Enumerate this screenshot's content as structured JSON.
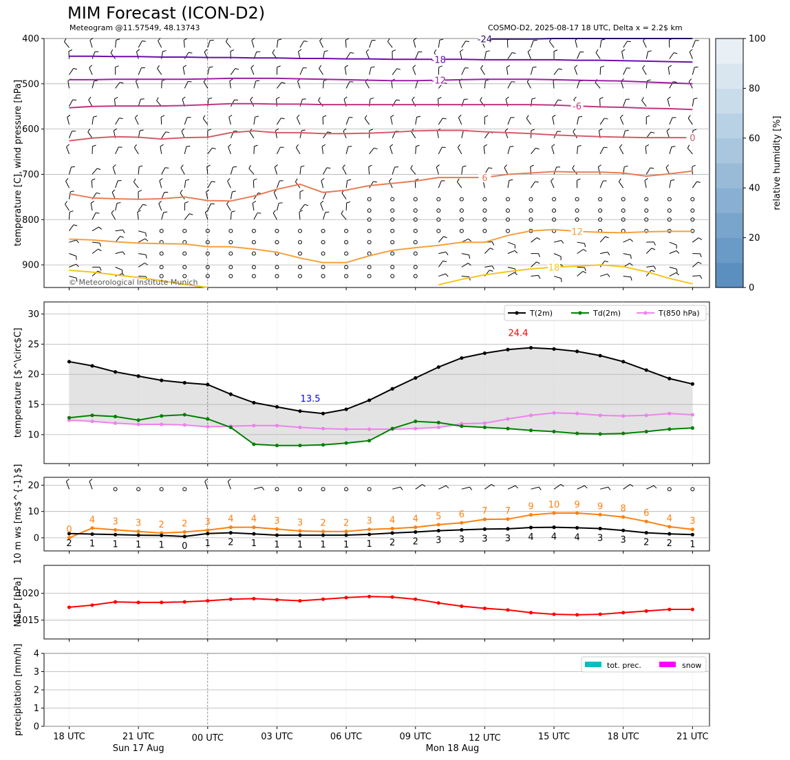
{
  "title": "MIM Forecast (ICON-D2)",
  "subtitle_left": "Meteogram @11.57549, 48.13743",
  "subtitle_right": "COSMO-D2, 2025-08-17 18 UTC, Delta x = 2.2$ km",
  "copyright": "© Meteorological Institute Munich",
  "colors": {
    "t2m": "#000000",
    "td2m": "#008000",
    "t850": "#ee82ee",
    "gust": "#ff7f0e",
    "mslp": "#ff0000",
    "precip": "#00bfbf",
    "snow": "#ff00ff",
    "min_label": "#0000ff",
    "max_label": "#ff0000",
    "fill": "#e3e3e3"
  },
  "chart_data": [
    {
      "type": "line",
      "panel": "upper-air",
      "ylabel": "temperature [C], wind pressure [hPa]",
      "y_ticks": [
        400,
        500,
        600,
        700,
        800,
        900
      ],
      "ylim": [
        950,
        400
      ],
      "x_tick_labels": [
        "18 UTC",
        "21 UTC",
        "00 UTC",
        "03 UTC",
        "06 UTC",
        "09 UTC",
        "12 UTC",
        "15 UTC",
        "18 UTC",
        "21 UTC"
      ],
      "x_date_labels": [
        "Sun 17 Aug",
        "Mon 18 Aug"
      ],
      "colorbar": {
        "label": "relative humidity [%]",
        "ticks": [
          0,
          20,
          40,
          60,
          80,
          100
        ]
      },
      "isotherms": [
        {
          "label": "-18",
          "values": [
            439,
            439,
            440,
            440,
            441,
            441,
            442,
            442,
            443,
            443,
            444,
            444,
            445,
            445,
            446,
            446,
            446,
            446,
            447,
            447,
            447,
            447,
            448,
            448,
            449,
            450,
            451,
            452
          ]
        },
        {
          "label": "-12",
          "values": [
            491,
            491,
            490,
            490,
            490,
            490,
            489,
            488,
            488,
            488,
            489,
            490,
            491,
            492,
            493,
            493,
            492,
            491,
            490,
            490,
            490,
            491,
            492,
            493,
            494,
            496,
            498,
            500
          ]
        },
        {
          "label": "-6",
          "values": [
            553,
            550,
            549,
            549,
            549,
            548,
            546,
            544,
            544,
            545,
            545,
            546,
            546,
            546,
            546,
            546,
            546,
            546,
            546,
            546,
            546,
            547,
            549,
            551,
            552,
            554,
            555,
            557
          ]
        },
        {
          "label": "0",
          "values": [
            626,
            620,
            617,
            618,
            622,
            619,
            618,
            608,
            604,
            608,
            608,
            610,
            610,
            609,
            607,
            604,
            603,
            603,
            606,
            608,
            610,
            613,
            615,
            617,
            618,
            619,
            619,
            619
          ]
        },
        {
          "label": "6",
          "values": [
            743,
            752,
            754,
            755,
            754,
            750,
            758,
            759,
            748,
            733,
            722,
            740,
            735,
            725,
            720,
            715,
            707,
            707,
            707,
            700,
            697,
            694,
            695,
            695,
            697,
            704,
            699,
            693
          ]
        },
        {
          "label": "12",
          "values": [
            843,
            845,
            849,
            852,
            853,
            854,
            860,
            860,
            865,
            872,
            885,
            895,
            895,
            880,
            868,
            862,
            857,
            850,
            850,
            835,
            825,
            822,
            826,
            828,
            829,
            827,
            826,
            826
          ]
        },
        {
          "label": "18",
          "values": [
            912,
            916,
            922,
            928,
            935,
            943,
            950,
            null,
            null,
            null,
            null,
            null,
            null,
            null,
            null,
            964,
            944,
            932,
            922,
            915,
            909,
            905,
            903,
            900,
            904,
            915,
            930,
            942
          ]
        },
        {
          "label": "-24",
          "values": [
            null,
            null,
            null,
            null,
            null,
            null,
            null,
            null,
            null,
            null,
            null,
            null,
            null,
            null,
            null,
            null,
            null,
            null,
            401,
            401,
            401,
            400,
            400,
            400,
            400,
            400,
            400,
            400
          ]
        }
      ]
    },
    {
      "type": "line",
      "panel": "temperature",
      "ylabel": "temperature [$^\\circ$C]",
      "y_ticks": [
        10,
        15,
        20,
        25,
        30
      ],
      "ylim": [
        5.2,
        32
      ],
      "legend": [
        "T(2m)",
        "Td(2m)",
        "T(850 hPa)"
      ],
      "annotations": [
        {
          "text": "13.5",
          "x": 11,
          "y": 13.5,
          "kind": "min"
        },
        {
          "text": "24.4",
          "x": 20,
          "y": 24.4,
          "kind": "max"
        }
      ],
      "series": [
        {
          "name": "T(2m)",
          "values": [
            22.1,
            21.4,
            20.4,
            19.7,
            19.0,
            18.6,
            18.3,
            16.7,
            15.3,
            14.6,
            13.9,
            13.5,
            14.2,
            15.7,
            17.6,
            19.4,
            21.2,
            22.7,
            23.5,
            24.1,
            24.4,
            24.2,
            23.8,
            23.1,
            22.1,
            20.7,
            19.3,
            18.4
          ]
        },
        {
          "name": "Td(2m)",
          "values": [
            12.8,
            13.2,
            13.0,
            12.4,
            13.1,
            13.3,
            12.6,
            11.2,
            8.4,
            8.2,
            8.2,
            8.3,
            8.6,
            9.0,
            11.0,
            12.2,
            12.0,
            11.4,
            11.2,
            11.0,
            10.7,
            10.5,
            10.2,
            10.1,
            10.2,
            10.5,
            10.9,
            11.1
          ]
        },
        {
          "name": "T(850 hPa)",
          "values": [
            12.4,
            12.2,
            11.9,
            11.7,
            11.7,
            11.6,
            11.3,
            11.4,
            11.5,
            11.5,
            11.2,
            11.0,
            10.9,
            10.9,
            10.9,
            11.0,
            11.2,
            11.8,
            11.9,
            12.6,
            13.2,
            13.6,
            13.5,
            13.2,
            13.1,
            13.2,
            13.5,
            13.3
          ]
        }
      ]
    },
    {
      "type": "line",
      "panel": "wind",
      "ylabel": "10 m ws [ms$^{-1}$]",
      "y_ticks": [
        0,
        10,
        20
      ],
      "ylim": [
        -5,
        23
      ],
      "series": [
        {
          "name": "gust",
          "values": [
            0,
            4,
            3,
            3,
            2,
            2,
            3,
            4,
            4,
            3,
            3,
            2,
            2,
            3,
            4,
            4,
            5,
            6,
            7,
            7,
            9,
            10,
            9,
            9,
            8,
            6,
            4,
            3
          ],
          "plot_values": [
            0,
            3.7,
            3.0,
            2.4,
            1.8,
            2.2,
            2.9,
            4.0,
            4.0,
            3.3,
            2.6,
            2.4,
            2.4,
            3.2,
            3.5,
            4.0,
            5.0,
            5.7,
            7.0,
            7.1,
            8.7,
            9.4,
            9.4,
            8.8,
            7.9,
            6.2,
            4.2,
            3.2
          ]
        },
        {
          "name": "mean",
          "values": [
            2,
            1,
            1,
            1,
            1,
            0,
            1,
            2,
            1,
            1,
            1,
            1,
            1,
            1,
            2,
            2,
            3,
            3,
            3,
            3,
            4,
            4,
            4,
            3,
            3,
            2,
            2,
            1
          ],
          "plot_values": [
            1.6,
            1.4,
            1.2,
            1.0,
            0.9,
            0.5,
            1.6,
            1.9,
            1.5,
            1.0,
            1.0,
            1.0,
            1.0,
            1.3,
            1.8,
            2.2,
            2.7,
            3.0,
            3.3,
            3.4,
            3.9,
            4.0,
            3.8,
            3.5,
            2.8,
            1.9,
            1.5,
            1.2
          ]
        }
      ],
      "barbs_calm": [
        false,
        false,
        true,
        true,
        true,
        true,
        false,
        false,
        false,
        true,
        true,
        true,
        true,
        true,
        false,
        false,
        false,
        false,
        false,
        false,
        false,
        false,
        false,
        false,
        false,
        false,
        true,
        true
      ]
    },
    {
      "type": "line",
      "panel": "mslp",
      "ylabel": "MSLP [hPa]",
      "y_ticks": [
        1015,
        1020
      ],
      "ylim": [
        1011.5,
        1025.2
      ],
      "series": [
        {
          "name": "MSLP",
          "values": [
            1017.4,
            1017.8,
            1018.4,
            1018.3,
            1018.3,
            1018.4,
            1018.6,
            1018.9,
            1019.0,
            1018.8,
            1018.6,
            1018.9,
            1019.2,
            1019.4,
            1019.3,
            1018.9,
            1018.2,
            1017.6,
            1017.2,
            1016.9,
            1016.4,
            1016.1,
            1016.0,
            1016.1,
            1016.4,
            1016.7,
            1017.0,
            1017.0
          ]
        }
      ]
    },
    {
      "type": "bar",
      "panel": "precipitation",
      "ylabel": "precipitation [mm/h]",
      "y_ticks": [
        0,
        1,
        2,
        3,
        4
      ],
      "ylim": [
        0,
        4
      ],
      "legend": [
        "tot. prec.",
        "snow"
      ],
      "series": [
        {
          "name": "tot. prec.",
          "values": [
            0,
            0,
            0,
            0,
            0,
            0,
            0,
            0,
            0,
            0,
            0,
            0,
            0,
            0,
            0,
            0,
            0,
            0,
            0,
            0,
            0,
            0,
            0,
            0,
            0,
            0,
            0,
            0
          ]
        },
        {
          "name": "snow",
          "values": [
            0,
            0,
            0,
            0,
            0,
            0,
            0,
            0,
            0,
            0,
            0,
            0,
            0,
            0,
            0,
            0,
            0,
            0,
            0,
            0,
            0,
            0,
            0,
            0,
            0,
            0,
            0,
            0
          ]
        }
      ]
    }
  ]
}
